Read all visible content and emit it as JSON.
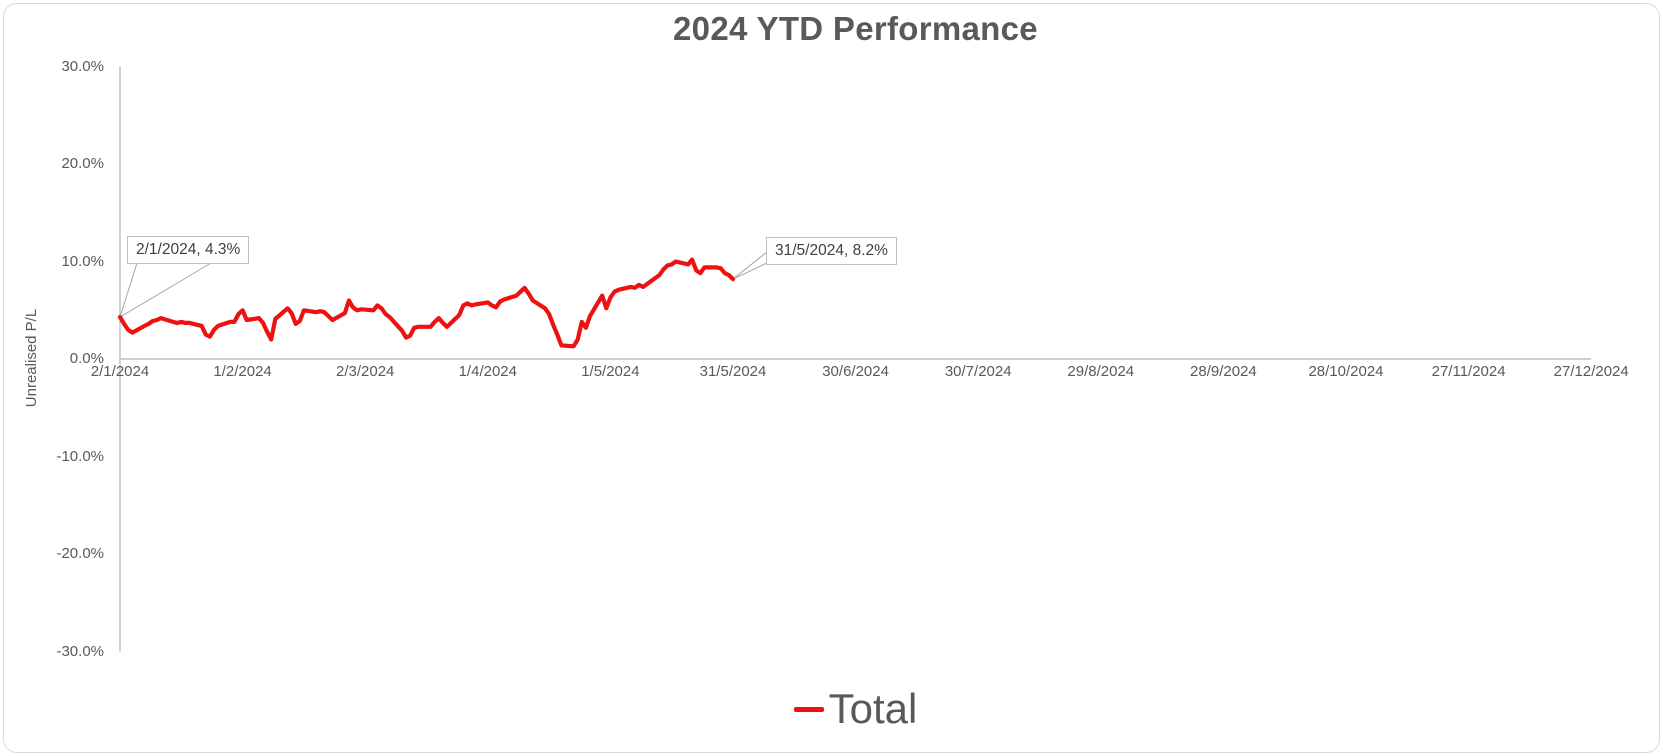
{
  "chart_data": {
    "type": "line",
    "title": "2024 YTD Performance",
    "xlabel": "",
    "ylabel": "Unrealised P/L",
    "ylim": [
      -30,
      30
    ],
    "xlim_days": [
      0,
      360
    ],
    "grid": false,
    "legend_position": "bottom",
    "y_ticks": [
      {
        "pct": 30,
        "label": "30.0%"
      },
      {
        "pct": 20,
        "label": "20.0%"
      },
      {
        "pct": 10,
        "label": "10.0%"
      },
      {
        "pct": 0,
        "label": "0.0%"
      },
      {
        "pct": -10,
        "label": "-10.0%"
      },
      {
        "pct": -20,
        "label": "-20.0%"
      },
      {
        "pct": -30,
        "label": "-30.0%"
      }
    ],
    "x_ticks": [
      {
        "day": 0,
        "label": "2/1/2024"
      },
      {
        "day": 30,
        "label": "1/2/2024"
      },
      {
        "day": 60,
        "label": "2/3/2024"
      },
      {
        "day": 90,
        "label": "1/4/2024"
      },
      {
        "day": 120,
        "label": "1/5/2024"
      },
      {
        "day": 150,
        "label": "31/5/2024"
      },
      {
        "day": 180,
        "label": "30/6/2024"
      },
      {
        "day": 210,
        "label": "30/7/2024"
      },
      {
        "day": 240,
        "label": "29/8/2024"
      },
      {
        "day": 270,
        "label": "28/9/2024"
      },
      {
        "day": 300,
        "label": "28/10/2024"
      },
      {
        "day": 330,
        "label": "27/11/2024"
      },
      {
        "day": 360,
        "label": "27/12/2024"
      }
    ],
    "points_format": "[calendar days since 2/1/2024, unrealised P/L %]",
    "series": [
      {
        "name": "Total",
        "color": "#ee1111",
        "points": [
          [
            0,
            4.3
          ],
          [
            1,
            3.6
          ],
          [
            2,
            3.0
          ],
          [
            3,
            2.7
          ],
          [
            6,
            3.4
          ],
          [
            7,
            3.6
          ],
          [
            8,
            3.9
          ],
          [
            9,
            4.0
          ],
          [
            10,
            4.2
          ],
          [
            13,
            3.8
          ],
          [
            14,
            3.7
          ],
          [
            15,
            3.8
          ],
          [
            16,
            3.7
          ],
          [
            17,
            3.7
          ],
          [
            20,
            3.4
          ],
          [
            21,
            2.5
          ],
          [
            22,
            2.3
          ],
          [
            23,
            3.0
          ],
          [
            24,
            3.4
          ],
          [
            27,
            3.8
          ],
          [
            28,
            3.8
          ],
          [
            29,
            4.6
          ],
          [
            30,
            5.0
          ],
          [
            31,
            4.0
          ],
          [
            34,
            4.2
          ],
          [
            35,
            3.7
          ],
          [
            36,
            2.8
          ],
          [
            37,
            2.0
          ],
          [
            38,
            4.1
          ],
          [
            41,
            5.2
          ],
          [
            42,
            4.7
          ],
          [
            43,
            3.6
          ],
          [
            44,
            3.9
          ],
          [
            45,
            5.0
          ],
          [
            48,
            4.8
          ],
          [
            49,
            4.9
          ],
          [
            50,
            4.8
          ],
          [
            51,
            4.4
          ],
          [
            52,
            4.0
          ],
          [
            55,
            4.7
          ],
          [
            56,
            6.0
          ],
          [
            57,
            5.3
          ],
          [
            58,
            5.0
          ],
          [
            59,
            5.1
          ],
          [
            62,
            5.0
          ],
          [
            63,
            5.5
          ],
          [
            64,
            5.2
          ],
          [
            65,
            4.6
          ],
          [
            66,
            4.3
          ],
          [
            69,
            2.9
          ],
          [
            70,
            2.2
          ],
          [
            71,
            2.4
          ],
          [
            72,
            3.2
          ],
          [
            73,
            3.3
          ],
          [
            76,
            3.3
          ],
          [
            77,
            3.8
          ],
          [
            78,
            4.2
          ],
          [
            79,
            3.7
          ],
          [
            80,
            3.3
          ],
          [
            83,
            4.5
          ],
          [
            84,
            5.5
          ],
          [
            85,
            5.7
          ],
          [
            86,
            5.5
          ],
          [
            87,
            5.6
          ],
          [
            90,
            5.8
          ],
          [
            91,
            5.5
          ],
          [
            92,
            5.3
          ],
          [
            93,
            5.9
          ],
          [
            94,
            6.1
          ],
          [
            97,
            6.5
          ],
          [
            98,
            6.9
          ],
          [
            99,
            7.3
          ],
          [
            100,
            6.7
          ],
          [
            101,
            6.0
          ],
          [
            104,
            5.2
          ],
          [
            105,
            4.6
          ],
          [
            106,
            3.5
          ],
          [
            107,
            2.5
          ],
          [
            108,
            1.4
          ],
          [
            111,
            1.3
          ],
          [
            112,
            2.0
          ],
          [
            113,
            3.8
          ],
          [
            114,
            3.2
          ],
          [
            115,
            4.4
          ],
          [
            118,
            6.5
          ],
          [
            119,
            5.2
          ],
          [
            120,
            6.3
          ],
          [
            121,
            6.9
          ],
          [
            122,
            7.1
          ],
          [
            125,
            7.4
          ],
          [
            126,
            7.3
          ],
          [
            127,
            7.6
          ],
          [
            128,
            7.4
          ],
          [
            129,
            7.7
          ],
          [
            132,
            8.6
          ],
          [
            133,
            9.2
          ],
          [
            134,
            9.6
          ],
          [
            135,
            9.7
          ],
          [
            136,
            10.0
          ],
          [
            139,
            9.7
          ],
          [
            140,
            10.2
          ],
          [
            141,
            9.1
          ],
          [
            142,
            8.8
          ],
          [
            143,
            9.4
          ],
          [
            146,
            9.4
          ],
          [
            147,
            9.3
          ],
          [
            148,
            8.8
          ],
          [
            149,
            8.6
          ],
          [
            150,
            8.2
          ]
        ]
      }
    ],
    "annotations": [
      {
        "day": 0,
        "value": 4.3,
        "text": "2/1/2024, 4.3%"
      },
      {
        "day": 150,
        "value": 8.2,
        "text": "31/5/2024, 8.2%"
      }
    ]
  },
  "colors": {
    "series_red": "#ee1111",
    "text_gray": "#595959",
    "callout_text": "#404040",
    "axis_line": "#bfbfbf",
    "leader_line": "#a6a6a6",
    "callout_border": "#bfbfbf",
    "chart_border": "#d9d9d9",
    "background": "#ffffff"
  }
}
